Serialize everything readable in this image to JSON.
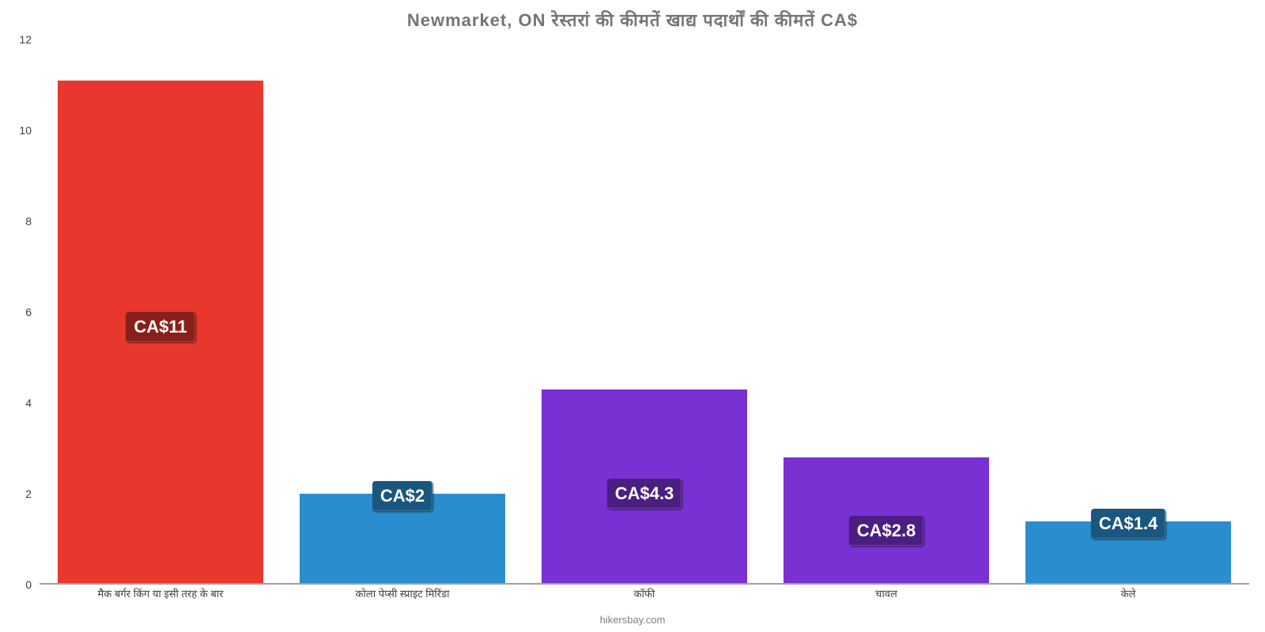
{
  "chart": {
    "type": "bar",
    "title": "Newmarket, ON रेस्तरां    की    कीमतें    खाद्य    पदार्थों    की    कीमतें    CA$",
    "title_fontsize": 22,
    "title_color": "#757575",
    "background_color": "#ffffff",
    "ylim": [
      0,
      12
    ],
    "yticks": [
      0,
      2,
      4,
      6,
      8,
      10,
      12
    ],
    "xlabel_color": "#404040",
    "ylabel_color": "#404040",
    "tick_fontsize": 14,
    "xlabel_fontsize": 13,
    "baseline_color": "#a0a0a0",
    "bar_width_ratio": 0.85,
    "attribution": "hikersbay.com",
    "attribution_color": "#808080",
    "categories": [
      "मैक बर्गर किंग या इसी तरह के बार",
      "कोला पेप्सी स्प्राइट मिरिंडा",
      "कॉफी",
      "चावल",
      "केले"
    ],
    "values": [
      11.1,
      2.0,
      4.3,
      2.8,
      1.4
    ],
    "value_labels": [
      "CA$11",
      "CA$2",
      "CA$4.3",
      "CA$2.8",
      "CA$1.4"
    ],
    "bar_colors": [
      "#e8372d",
      "#2a8ece",
      "#7a31d3",
      "#7a31d3",
      "#2a8ece"
    ],
    "label_bg_colors": [
      "#8a1f1a",
      "#1a5780",
      "#4b1e82",
      "#4b1e82",
      "#1a5780"
    ],
    "label_text_color": "#ffffff",
    "label_fontsize": 22
  }
}
